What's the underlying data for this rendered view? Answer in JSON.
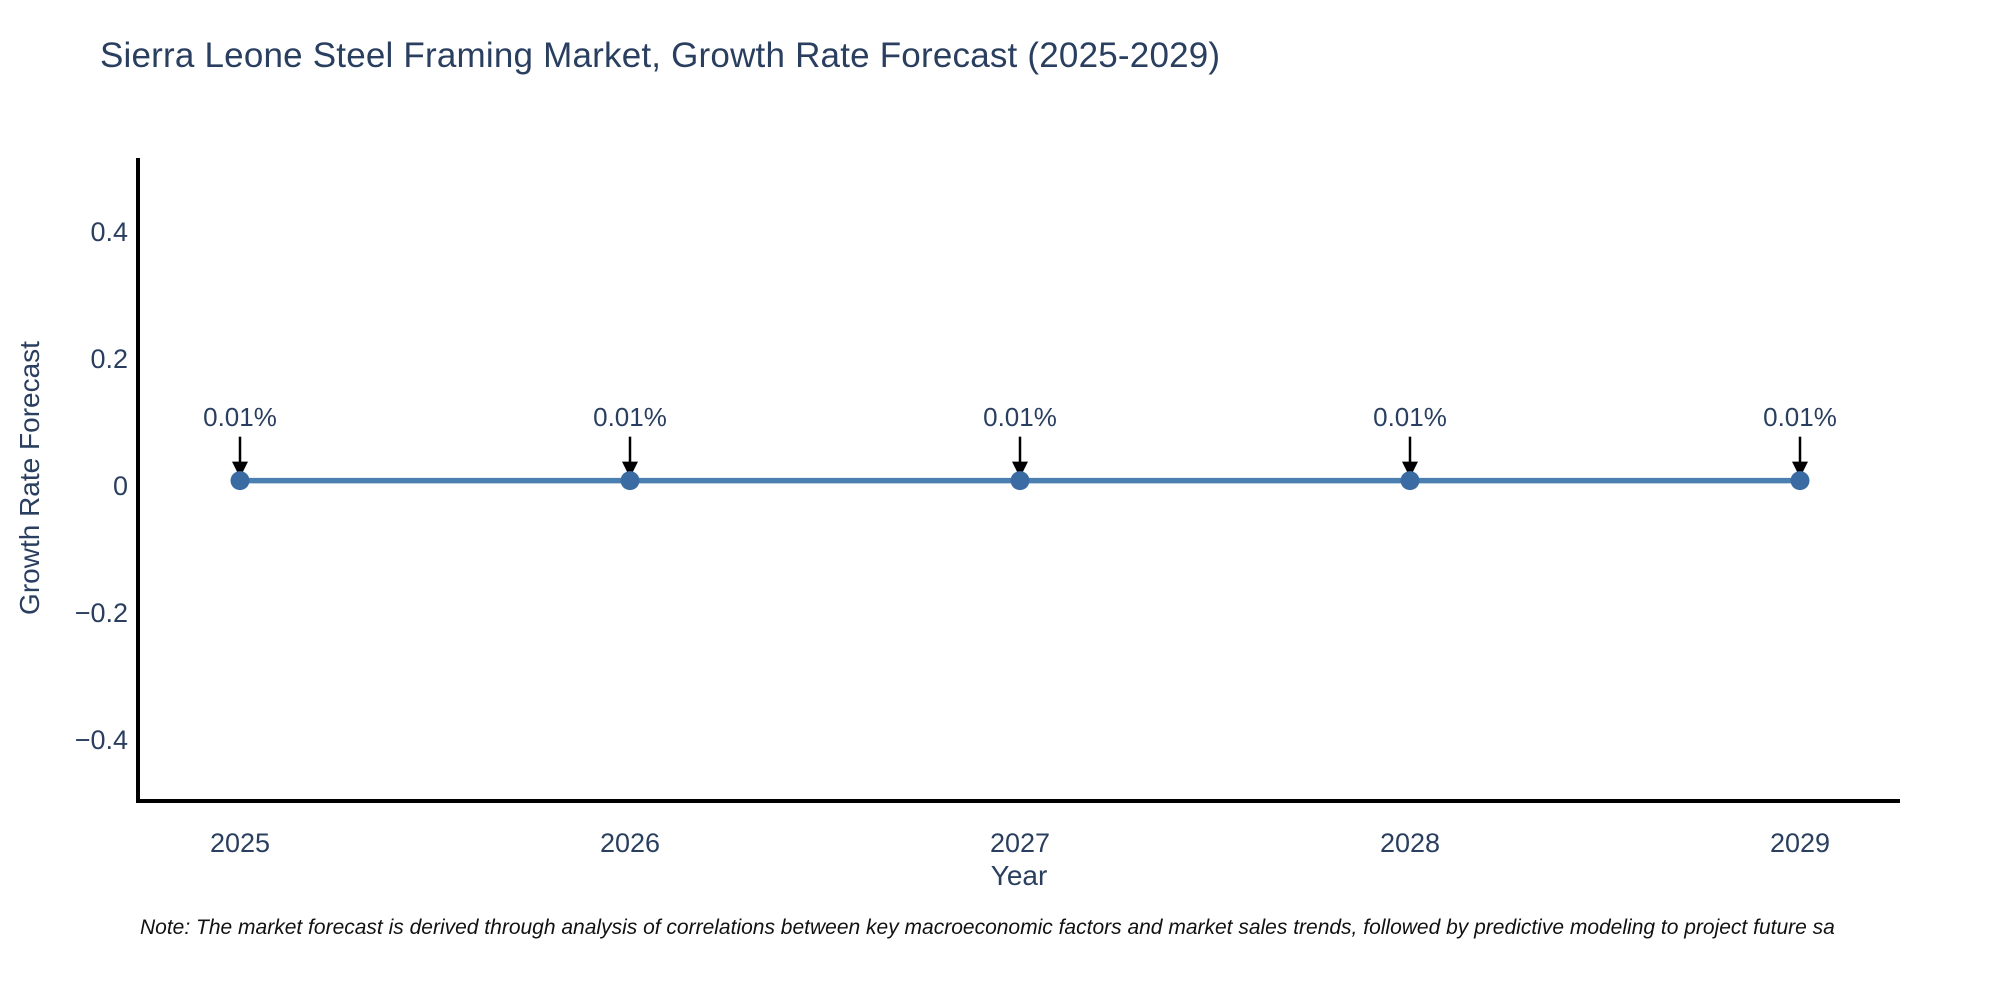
{
  "chart_data": {
    "type": "line",
    "title": "Sierra Leone Steel Framing Market, Growth Rate Forecast (2025-2029)",
    "xlabel": "Year",
    "ylabel": "Growth Rate Forecast",
    "categories": [
      "2025",
      "2026",
      "2027",
      "2028",
      "2029"
    ],
    "series": [
      {
        "name": "Growth Rate Forecast",
        "values": [
          0.01,
          0.01,
          0.01,
          0.01,
          0.01
        ],
        "unit": "%"
      }
    ],
    "point_labels": [
      "0.01%",
      "0.01%",
      "0.01%",
      "0.01%",
      "0.01%"
    ],
    "y_ticks": [
      "0.4",
      "0.2",
      "0",
      "−0.2",
      "−0.4"
    ],
    "ylim": [
      -0.5,
      0.5
    ],
    "grid": false,
    "legend": false,
    "annotations_style": "value labels above each point with black down arrows",
    "colors": {
      "line": "#4a7fb0",
      "marker": "#3a6ca3",
      "axis_spine": "#000000",
      "arrow": "#000000",
      "text": "#2a3f5f",
      "note_text": "#111111",
      "background": "#ffffff"
    },
    "note": "Note: The market forecast is derived through analysis of correlations between key macroeconomic factors and market sales trends, followed by predictive modeling to project future sa"
  }
}
